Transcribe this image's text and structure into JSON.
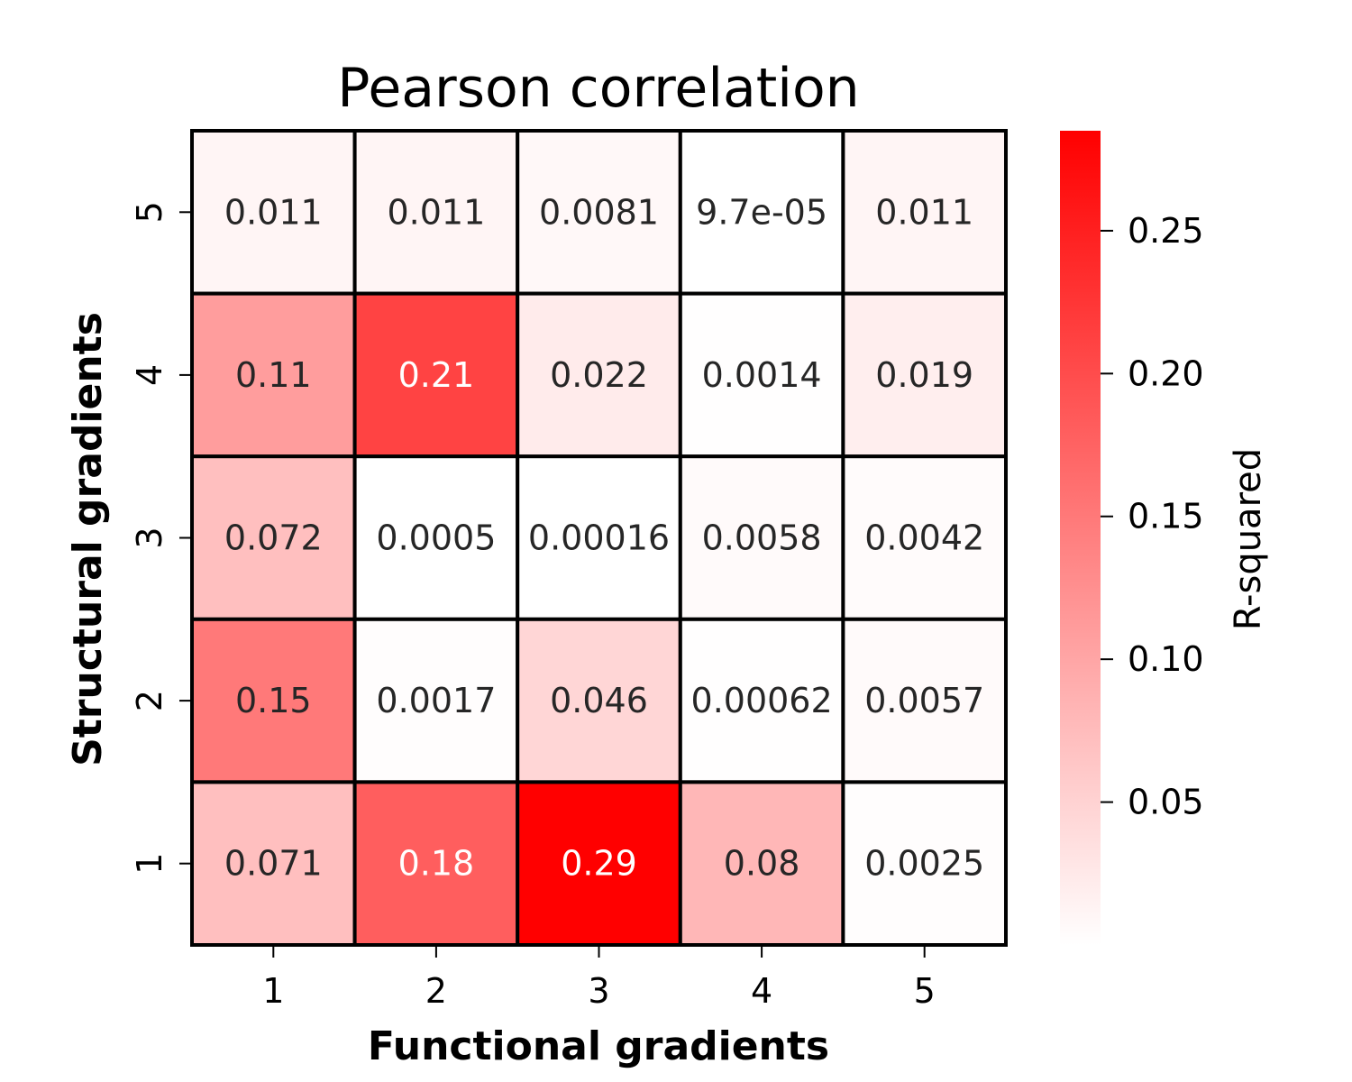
{
  "chart_data": {
    "type": "heatmap",
    "title": "Pearson correlation",
    "xlabel": "Functional gradients",
    "ylabel": "Structural gradients",
    "x_categories": [
      "1",
      "2",
      "3",
      "4",
      "5"
    ],
    "y_categories": [
      "1",
      "2",
      "3",
      "4",
      "5"
    ],
    "rows": [
      {
        "y": "5",
        "values": [
          0.011,
          0.011,
          0.0081,
          9.7e-05,
          0.011
        ],
        "labels": [
          "0.011",
          "0.011",
          "0.0081",
          "9.7e-05",
          "0.011"
        ]
      },
      {
        "y": "4",
        "values": [
          0.11,
          0.21,
          0.022,
          0.0014,
          0.019
        ],
        "labels": [
          "0.11",
          "0.21",
          "0.022",
          "0.0014",
          "0.019"
        ]
      },
      {
        "y": "3",
        "values": [
          0.072,
          0.0005,
          0.00016,
          0.0058,
          0.0042
        ],
        "labels": [
          "0.072",
          "0.0005",
          "0.00016",
          "0.0058",
          "0.0042"
        ]
      },
      {
        "y": "2",
        "values": [
          0.15,
          0.0017,
          0.046,
          0.00062,
          0.0057
        ],
        "labels": [
          "0.15",
          "0.0017",
          "0.046",
          "0.00062",
          "0.0057"
        ]
      },
      {
        "y": "1",
        "values": [
          0.071,
          0.18,
          0.29,
          0.08,
          0.0025
        ],
        "labels": [
          "0.071",
          "0.18",
          "0.29",
          "0.08",
          "0.0025"
        ]
      }
    ],
    "colorbar": {
      "label": "R-squared",
      "range": [
        0.0,
        0.285
      ],
      "ticks": [
        0.05,
        0.1,
        0.15,
        0.2,
        0.25
      ],
      "tick_labels": [
        "0.05",
        "0.10",
        "0.15",
        "0.20",
        "0.25"
      ],
      "color_low": "#ffffff",
      "color_high": "#ff0000"
    },
    "grid": true,
    "legend": "colorbar-right"
  }
}
